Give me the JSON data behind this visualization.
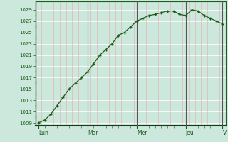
{
  "x_labels": [
    "Lun",
    "Mar",
    "Mer",
    "Jeu",
    "V"
  ],
  "y_min": 1009,
  "y_max": 1029,
  "y_tick_step": 2,
  "background_color": "#cce8dc",
  "grid_color_major_h": "#ffffff",
  "grid_color_major_v": "#ffffff",
  "grid_color_minor_v": "#e8aaaa",
  "line_color": "#1a5c1a",
  "marker_color": "#1a5c1a",
  "vline_color": "#555555",
  "x_values": [
    0,
    4,
    8,
    12,
    16,
    20,
    24,
    28,
    32,
    36,
    40,
    44,
    48,
    52,
    56,
    60,
    64,
    68,
    72,
    76,
    80,
    84,
    88,
    92,
    96,
    100,
    104,
    108,
    112,
    116,
    120
  ],
  "y_values": [
    1009,
    1009.5,
    1010.5,
    1012,
    1013.5,
    1015,
    1016,
    1017,
    1018,
    1019.5,
    1021,
    1022,
    1023,
    1024.5,
    1025,
    1026,
    1027,
    1027.5,
    1028,
    1028.2,
    1028.5,
    1028.8,
    1028.8,
    1028.2,
    1028,
    1029,
    1028.8,
    1028,
    1027.5,
    1027,
    1026.5
  ],
  "day_positions": [
    0,
    32,
    64,
    96,
    120
  ],
  "day_labels": [
    "Lun",
    "Mar",
    "Mer",
    "Jeu",
    "V"
  ],
  "vline_positions": [
    32,
    64,
    96,
    120
  ],
  "xlim": [
    -2,
    122
  ],
  "ylim": [
    1008.5,
    1030.5
  ]
}
